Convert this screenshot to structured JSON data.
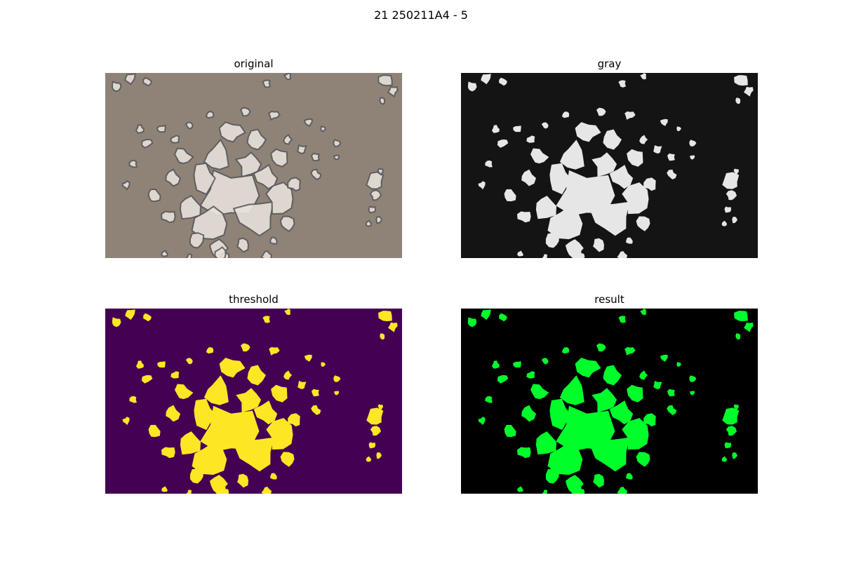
{
  "figure": {
    "suptitle": "21 250211A4 - 5",
    "panels": [
      {
        "id": "original",
        "title": "original",
        "background": "#8f8377",
        "blob_fill": "#e7e1da",
        "blob_stroke": "#5a5a5e"
      },
      {
        "id": "gray",
        "title": "gray",
        "background": "#141414",
        "blob_fill": "#e6e6e6"
      },
      {
        "id": "threshold",
        "title": "threshold",
        "background": "#440154",
        "blob_fill": "#fde725"
      },
      {
        "id": "result",
        "title": "result",
        "background": "#000000",
        "blob_fill": "#00ff2a"
      }
    ]
  }
}
